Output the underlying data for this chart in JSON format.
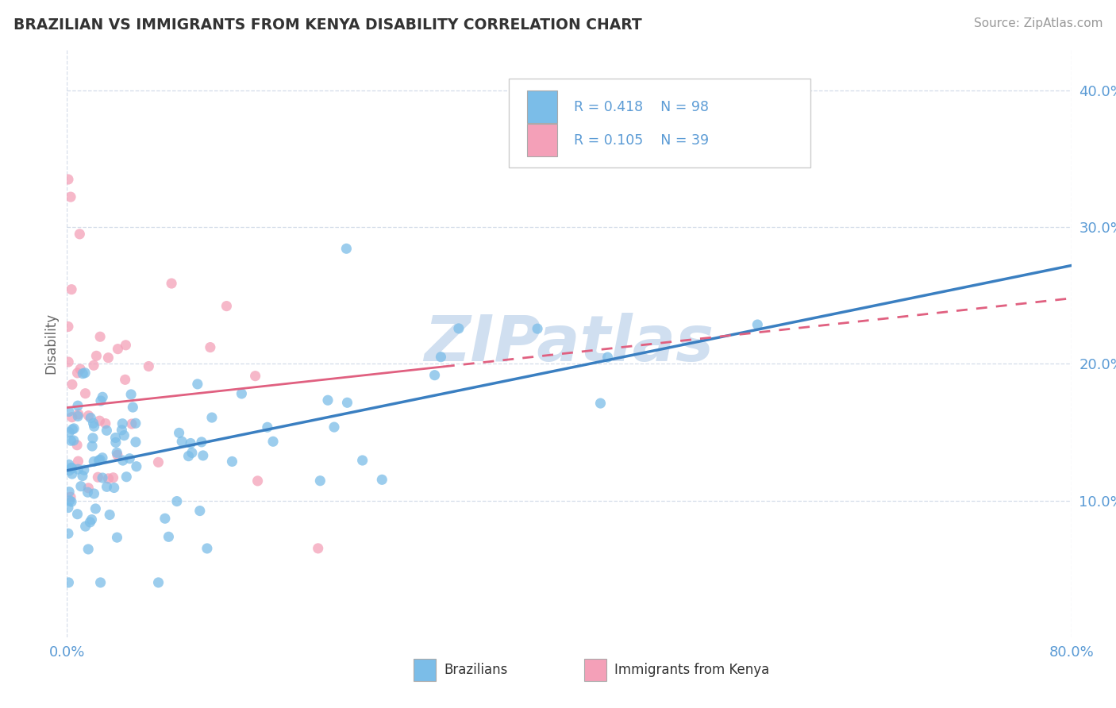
{
  "title": "BRAZILIAN VS IMMIGRANTS FROM KENYA DISABILITY CORRELATION CHART",
  "source": "Source: ZipAtlas.com",
  "ylabel": "Disability",
  "yticks": [
    "10.0%",
    "20.0%",
    "30.0%",
    "40.0%"
  ],
  "ytick_vals": [
    0.1,
    0.2,
    0.3,
    0.4
  ],
  "xlim": [
    0.0,
    0.8
  ],
  "ylim": [
    0.0,
    0.43
  ],
  "color_blue": "#7bbde8",
  "color_pink": "#f4a0b8",
  "color_blue_line": "#3a7fc1",
  "color_pink_line": "#e06080",
  "watermark": "ZIPatlas",
  "watermark_color": "#d0dff0",
  "blue_line_x0": 0.0,
  "blue_line_y0": 0.122,
  "blue_line_x1": 0.8,
  "blue_line_y1": 0.272,
  "pink_line_x0": 0.0,
  "pink_line_y0": 0.168,
  "pink_line_x1": 0.8,
  "pink_line_y1": 0.248,
  "pink_line_solid_x1": 0.3,
  "seed": 17
}
